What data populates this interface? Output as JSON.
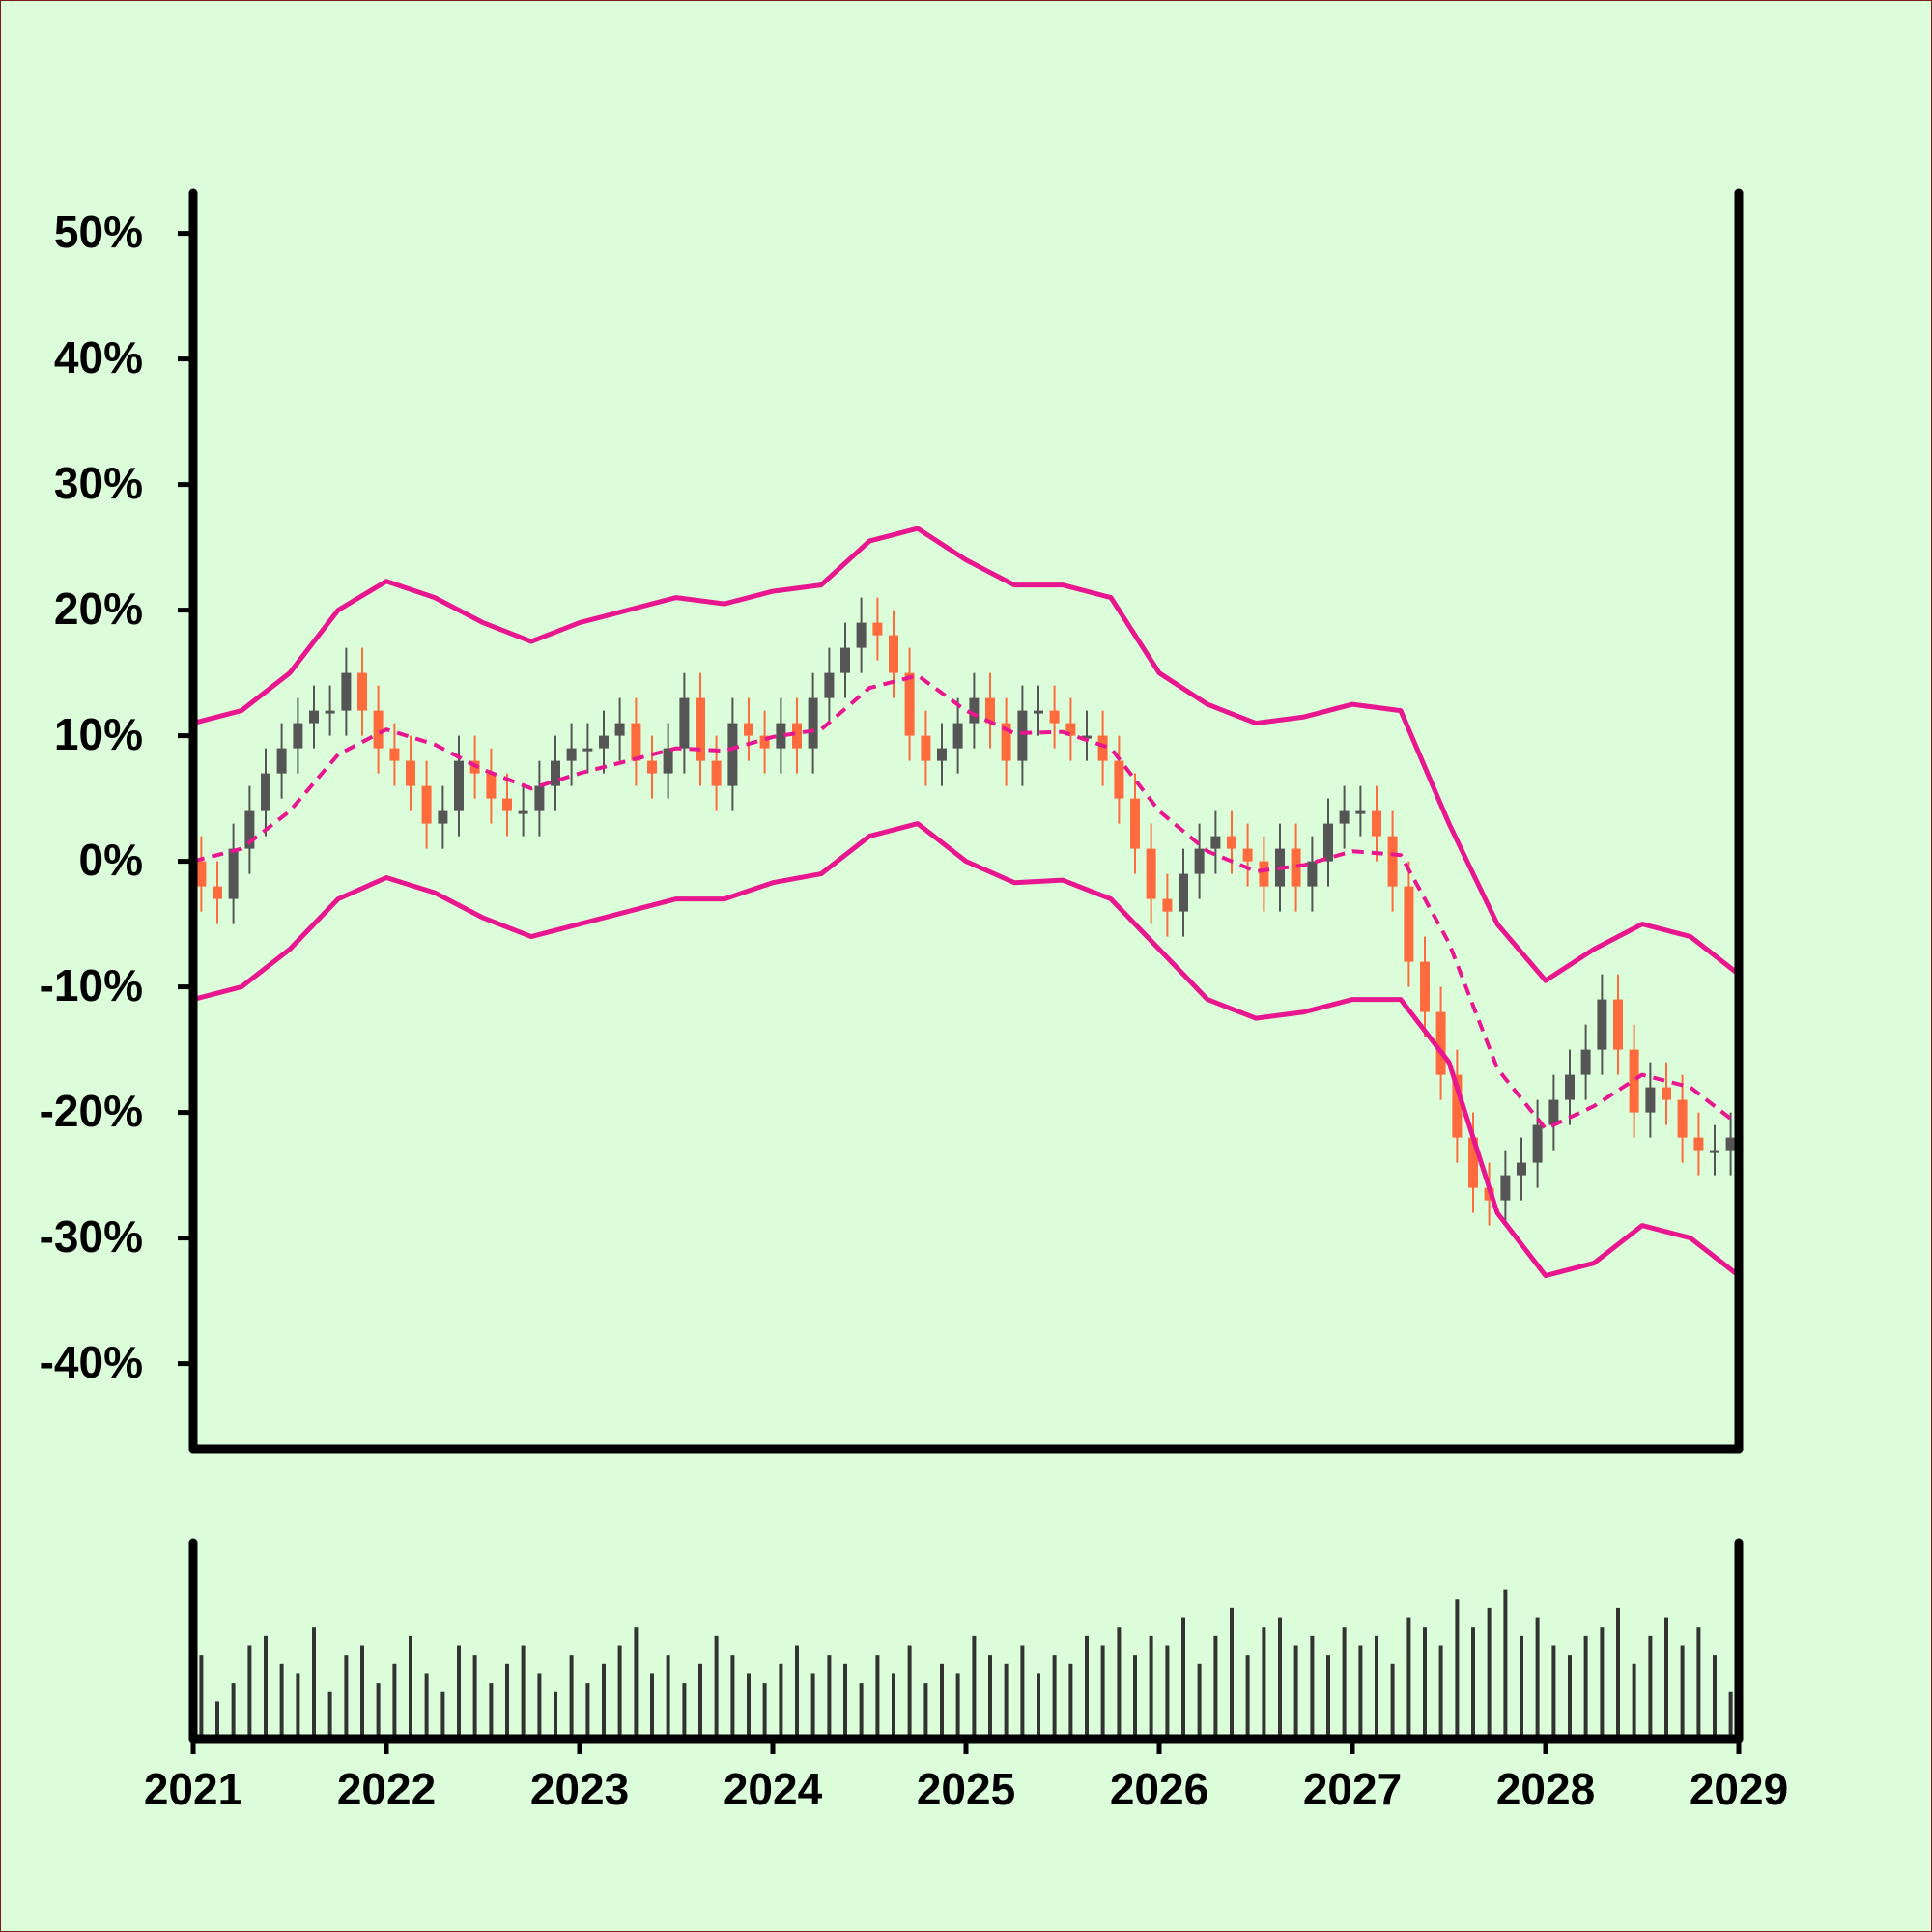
{
  "chart_data": {
    "type": "candlestick",
    "x": [
      2021.042,
      2021.125,
      2021.208,
      2021.292,
      2021.375,
      2021.458,
      2021.542,
      2021.625,
      2021.708,
      2021.792,
      2021.875,
      2021.958,
      2022.042,
      2022.125,
      2022.208,
      2022.292,
      2022.375,
      2022.458,
      2022.542,
      2022.625,
      2022.708,
      2022.792,
      2022.875,
      2022.958,
      2023.042,
      2023.125,
      2023.208,
      2023.292,
      2023.375,
      2023.458,
      2023.542,
      2023.625,
      2023.708,
      2023.792,
      2023.875,
      2023.958,
      2024.042,
      2024.125,
      2024.208,
      2024.292,
      2024.375,
      2024.458,
      2024.542,
      2024.625,
      2024.708,
      2024.792,
      2024.875,
      2024.958,
      2025.042,
      2025.125,
      2025.208,
      2025.292,
      2025.375,
      2025.458,
      2025.542,
      2025.625,
      2025.708,
      2025.792,
      2025.875,
      2025.958,
      2026.042,
      2026.125,
      2026.208,
      2026.292,
      2026.375,
      2026.458,
      2026.542,
      2026.625,
      2026.708,
      2026.792,
      2026.875,
      2026.958,
      2027.042,
      2027.125,
      2027.208,
      2027.292,
      2027.375,
      2027.458,
      2027.542,
      2027.625,
      2027.708,
      2027.792,
      2027.875,
      2027.958,
      2028.042,
      2028.125,
      2028.208,
      2028.292,
      2028.375,
      2028.458,
      2028.542,
      2028.625,
      2028.708,
      2028.792,
      2028.875,
      2028.958
    ],
    "open": [
      0,
      -2,
      -3,
      1,
      4,
      7,
      9,
      11,
      12,
      12,
      15,
      12,
      9,
      8,
      6,
      3,
      4,
      8,
      7,
      5,
      4,
      4,
      6,
      8,
      9,
      9,
      10,
      11,
      8,
      7,
      9,
      13,
      8,
      6,
      11,
      10,
      9,
      11,
      9,
      13,
      15,
      17,
      19,
      18,
      15,
      10,
      8,
      9,
      11,
      13,
      11,
      8,
      12,
      12,
      11,
      10,
      10,
      8,
      5,
      1,
      -3,
      -4,
      -1,
      1,
      2,
      1,
      0,
      -2,
      1,
      -2,
      0,
      3,
      4,
      4,
      2,
      -2,
      -8,
      -12,
      -17,
      -22,
      -26,
      -27,
      -25,
      -24,
      -21,
      -19,
      -17,
      -15,
      -11,
      -15,
      -20,
      -18,
      -19,
      -22,
      -23,
      -23
    ],
    "high": [
      2,
      0,
      3,
      6,
      9,
      11,
      13,
      14,
      14,
      17,
      17,
      14,
      11,
      10,
      8,
      6,
      10,
      10,
      9,
      7,
      6,
      8,
      10,
      11,
      11,
      12,
      13,
      13,
      10,
      11,
      15,
      15,
      10,
      13,
      13,
      12,
      13,
      13,
      15,
      17,
      19,
      21,
      21,
      20,
      17,
      12,
      11,
      13,
      15,
      15,
      13,
      14,
      14,
      14,
      13,
      12,
      12,
      10,
      7,
      3,
      -1,
      1,
      3,
      4,
      4,
      3,
      2,
      3,
      3,
      2,
      5,
      6,
      6,
      6,
      4,
      0,
      -6,
      -10,
      -15,
      -20,
      -24,
      -23,
      -22,
      -19,
      -17,
      -15,
      -13,
      -9,
      -9,
      -13,
      -16,
      -16,
      -17,
      -20,
      -21,
      -20
    ],
    "low": [
      -4,
      -5,
      -5,
      -1,
      2,
      5,
      7,
      9,
      10,
      10,
      10,
      7,
      6,
      4,
      1,
      1,
      2,
      5,
      3,
      2,
      2,
      2,
      4,
      6,
      7,
      7,
      8,
      6,
      5,
      5,
      7,
      6,
      4,
      4,
      8,
      7,
      7,
      7,
      7,
      11,
      13,
      15,
      16,
      13,
      8,
      6,
      6,
      7,
      9,
      9,
      6,
      6,
      10,
      9,
      8,
      8,
      6,
      3,
      -1,
      -5,
      -6,
      -6,
      -3,
      -1,
      -1,
      -2,
      -4,
      -4,
      -4,
      -4,
      -2,
      1,
      2,
      0,
      -4,
      -10,
      -14,
      -19,
      -24,
      -28,
      -29,
      -29,
      -27,
      -26,
      -23,
      -21,
      -19,
      -17,
      -17,
      -22,
      -22,
      -21,
      -24,
      -25,
      -25,
      -25
    ],
    "close": [
      -2,
      -3,
      1,
      4,
      7,
      9,
      11,
      12,
      12,
      15,
      12,
      9,
      8,
      6,
      3,
      4,
      8,
      7,
      5,
      4,
      4,
      6,
      8,
      9,
      9,
      10,
      11,
      8,
      7,
      9,
      13,
      8,
      6,
      11,
      10,
      9,
      11,
      9,
      13,
      15,
      17,
      19,
      18,
      15,
      10,
      8,
      9,
      11,
      13,
      11,
      8,
      12,
      12,
      11,
      10,
      10,
      8,
      5,
      1,
      -3,
      -4,
      -1,
      1,
      2,
      1,
      0,
      -2,
      1,
      -2,
      0,
      3,
      4,
      4,
      2,
      -2,
      -8,
      -12,
      -17,
      -22,
      -26,
      -27,
      -25,
      -24,
      -21,
      -19,
      -17,
      -15,
      -11,
      -15,
      -20,
      -18,
      -19,
      -22,
      -23,
      -23,
      -22
    ],
    "up_color": "#555555",
    "down_color": "#ff6b3d",
    "bands": {
      "x": [
        2021,
        2021.25,
        2021.5,
        2021.75,
        2022,
        2022.25,
        2022.5,
        2022.75,
        2023,
        2023.25,
        2023.5,
        2023.75,
        2024,
        2024.25,
        2024.5,
        2024.75,
        2025,
        2025.25,
        2025.5,
        2025.75,
        2026,
        2026.25,
        2026.5,
        2026.75,
        2027,
        2027.25,
        2027.5,
        2027.75,
        2028,
        2028.25,
        2028.5,
        2028.75,
        2029
      ],
      "upper": [
        11,
        12,
        15,
        20,
        22.3,
        21,
        19,
        17.5,
        19,
        20,
        21,
        20.5,
        21.5,
        22,
        25.5,
        26.5,
        24,
        22,
        22,
        21,
        15,
        12.5,
        11,
        11.5,
        12.5,
        12,
        3,
        -5,
        -9.5,
        -7,
        -5,
        -6,
        -9
      ],
      "middle": [
        0,
        1,
        4,
        8.5,
        10.5,
        9.3,
        7.3,
        5.8,
        7,
        8,
        9,
        8.8,
        9.9,
        10.5,
        13.8,
        14.8,
        12,
        10.2,
        10.3,
        9,
        4,
        0.8,
        -0.8,
        -0.3,
        0.8,
        0.5,
        -6.5,
        -16.5,
        -21.3,
        -19.5,
        -17,
        -18,
        -21
      ],
      "lower": [
        -11,
        -10,
        -7,
        -3,
        -1.3,
        -2.5,
        -4.5,
        -6,
        -5,
        -4,
        -3,
        -3,
        -1.7,
        -1,
        2,
        3,
        0,
        -1.7,
        -1.5,
        -3,
        -7,
        -11,
        -12.5,
        -12,
        -11,
        -11,
        -16,
        -28,
        -33,
        -32,
        -29,
        -30,
        -33
      ],
      "color": "#e8168f"
    },
    "volume": {
      "values": [
        45,
        20,
        30,
        50,
        55,
        40,
        35,
        60,
        25,
        45,
        50,
        30,
        40,
        55,
        35,
        25,
        50,
        45,
        30,
        40,
        50,
        35,
        25,
        45,
        30,
        40,
        50,
        60,
        35,
        45,
        30,
        40,
        55,
        45,
        35,
        30,
        40,
        50,
        35,
        45,
        40,
        30,
        45,
        35,
        50,
        30,
        40,
        35,
        55,
        45,
        40,
        50,
        35,
        45,
        40,
        55,
        50,
        60,
        45,
        55,
        50,
        65,
        40,
        55,
        70,
        45,
        60,
        65,
        50,
        55,
        45,
        60,
        50,
        55,
        40,
        65,
        60,
        50,
        75,
        60,
        70,
        80,
        55,
        65,
        50,
        45,
        55,
        60,
        70,
        40,
        55,
        65,
        50,
        60,
        45,
        25
      ],
      "ylim": [
        0,
        100
      ],
      "color": "#333333"
    },
    "xlim": [
      2021,
      2029
    ],
    "xticks": [
      2021,
      2022,
      2023,
      2024,
      2025,
      2026,
      2027,
      2028,
      2029
    ],
    "ylim": [
      -46.8,
      53.2
    ],
    "yticks": [
      {
        "value": 50,
        "label": "50%"
      },
      {
        "value": 40,
        "label": "40%"
      },
      {
        "value": 30,
        "label": "30%"
      },
      {
        "value": 20,
        "label": "20%"
      },
      {
        "value": 10,
        "label": "10%"
      },
      {
        "value": 0,
        "label": "0%"
      },
      {
        "value": -10,
        "label": "-10%"
      },
      {
        "value": -20,
        "label": "-20%"
      },
      {
        "value": -30,
        "label": "-30%"
      },
      {
        "value": -40,
        "label": "-40%"
      }
    ]
  }
}
